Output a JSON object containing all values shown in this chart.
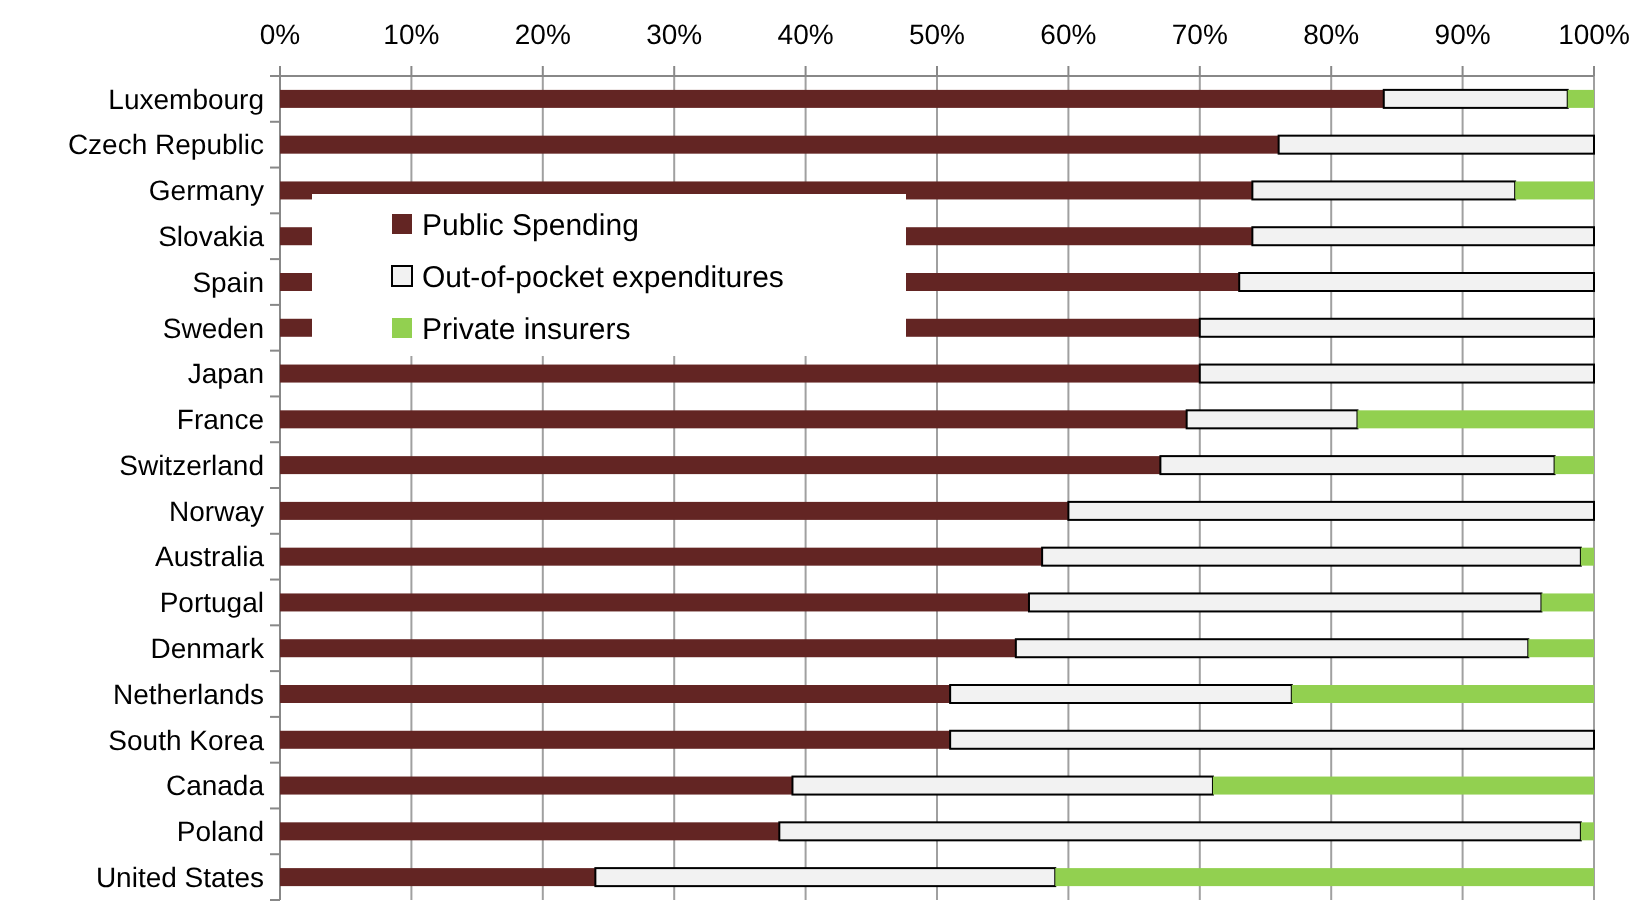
{
  "chart_data": {
    "type": "bar",
    "orientation": "horizontal",
    "stacked": true,
    "categories": [
      "Luxembourg",
      "Czech Republic",
      "Germany",
      "Slovakia",
      "Spain",
      "Sweden",
      "Japan",
      "France",
      "Switzerland",
      "Norway",
      "Australia",
      "Portugal",
      "Denmark",
      "Netherlands",
      "South Korea",
      "Canada",
      "Poland",
      "United States"
    ],
    "series": [
      {
        "name": "Public Spending",
        "color": "#632523",
        "values": [
          84,
          76,
          74,
          74,
          73,
          70,
          70,
          69,
          67,
          60,
          58,
          57,
          56,
          51,
          51,
          39,
          38,
          24
        ]
      },
      {
        "name": "Out-of-pocket expenditures",
        "color": "#f2f2f2",
        "values": [
          14,
          24,
          20,
          26,
          27,
          30,
          30,
          13,
          30,
          40,
          41,
          39,
          39,
          26,
          49,
          32,
          61,
          35
        ]
      },
      {
        "name": "Private insurers",
        "color": "#92d050",
        "values": [
          2,
          0,
          6,
          0,
          0,
          0,
          0,
          18,
          3,
          0,
          1,
          4,
          5,
          23,
          0,
          29,
          1,
          41
        ]
      }
    ],
    "xlim": [
      0,
      100
    ],
    "xticks": [
      {
        "value": 0,
        "label": "0%"
      },
      {
        "value": 10,
        "label": "10%"
      },
      {
        "value": 20,
        "label": "20%"
      },
      {
        "value": 30,
        "label": "30%"
      },
      {
        "value": 40,
        "label": "40%"
      },
      {
        "value": 50,
        "label": "50%"
      },
      {
        "value": 60,
        "label": "60%"
      },
      {
        "value": 70,
        "label": "70%"
      },
      {
        "value": 80,
        "label": "80%"
      },
      {
        "value": 90,
        "label": "90%"
      },
      {
        "value": 100,
        "label": "100%"
      }
    ],
    "grid": "x",
    "legend": "top left"
  }
}
